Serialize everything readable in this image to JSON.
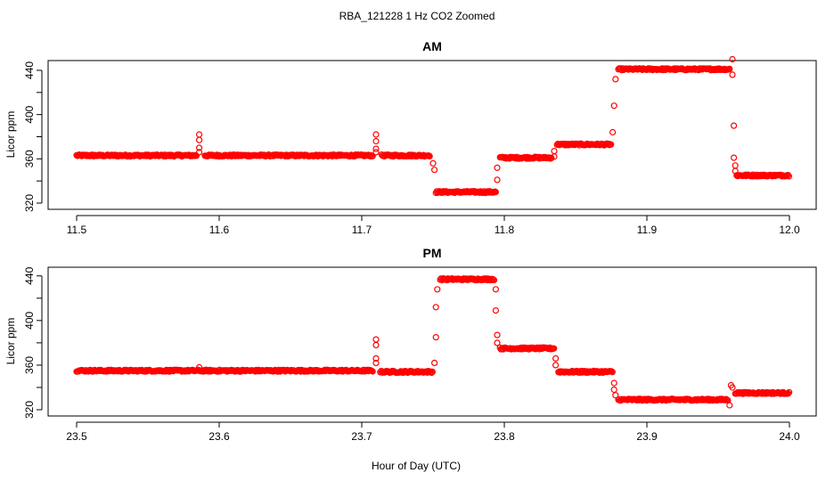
{
  "chart_data": {
    "title": "RBA_121228  1 Hz CO2 Zoomed",
    "xlabel": "Hour of Day (UTC)",
    "point_color": "#ff0000",
    "panels": [
      {
        "type": "scatter",
        "title": "AM",
        "ylabel": "Licor ppm",
        "xlim": [
          11.5,
          12.0
        ],
        "ylim": [
          320,
          444
        ],
        "xticks": [
          "11.5",
          "11.6",
          "11.7",
          "11.8",
          "11.9",
          "12.0"
        ],
        "yticks": [
          "320",
          "360",
          "400",
          "440"
        ],
        "segments": [
          {
            "x0": 11.5,
            "x1": 11.584,
            "y": 363
          },
          {
            "x0": 11.59,
            "x1": 11.708,
            "y": 363
          },
          {
            "x0": 11.714,
            "x1": 11.748,
            "y": 363
          },
          {
            "x0": 11.752,
            "x1": 11.794,
            "y": 330
          },
          {
            "x0": 11.797,
            "x1": 11.833,
            "y": 361
          },
          {
            "x0": 11.837,
            "x1": 11.875,
            "y": 373
          },
          {
            "x0": 11.88,
            "x1": 11.958,
            "y": 441
          },
          {
            "x0": 11.963,
            "x1": 12.0,
            "y": 345
          }
        ],
        "spikes": [
          {
            "x": 11.586,
            "y": 382
          },
          {
            "x": 11.586,
            "y": 377
          },
          {
            "x": 11.586,
            "y": 370
          },
          {
            "x": 11.586,
            "y": 366
          },
          {
            "x": 11.71,
            "y": 382
          },
          {
            "x": 11.71,
            "y": 376
          },
          {
            "x": 11.71,
            "y": 369
          },
          {
            "x": 11.71,
            "y": 366
          },
          {
            "x": 11.75,
            "y": 356
          },
          {
            "x": 11.751,
            "y": 350
          },
          {
            "x": 11.795,
            "y": 341
          },
          {
            "x": 11.795,
            "y": 352
          },
          {
            "x": 11.835,
            "y": 362
          },
          {
            "x": 11.835,
            "y": 367
          },
          {
            "x": 11.876,
            "y": 384
          },
          {
            "x": 11.877,
            "y": 408
          },
          {
            "x": 11.878,
            "y": 432
          },
          {
            "x": 11.96,
            "y": 450
          },
          {
            "x": 11.96,
            "y": 436
          },
          {
            "x": 11.961,
            "y": 390
          },
          {
            "x": 11.961,
            "y": 361
          },
          {
            "x": 11.962,
            "y": 354
          },
          {
            "x": 11.962,
            "y": 349
          }
        ]
      },
      {
        "type": "scatter",
        "title": "PM",
        "ylabel": "Licor ppm",
        "xlim": [
          23.5,
          24.0
        ],
        "ylim": [
          320,
          443
        ],
        "xticks": [
          "23.5",
          "23.6",
          "23.7",
          "23.8",
          "23.9",
          "24.0"
        ],
        "yticks": [
          "320",
          "360",
          "400",
          "440"
        ],
        "segments": [
          {
            "x0": 23.5,
            "x1": 23.708,
            "y": 355
          },
          {
            "x0": 23.713,
            "x1": 23.75,
            "y": 354
          },
          {
            "x0": 23.755,
            "x1": 23.793,
            "y": 437
          },
          {
            "x0": 23.797,
            "x1": 23.835,
            "y": 375
          },
          {
            "x0": 23.838,
            "x1": 23.876,
            "y": 354
          },
          {
            "x0": 23.88,
            "x1": 23.957,
            "y": 329
          },
          {
            "x0": 23.962,
            "x1": 24.0,
            "y": 335
          }
        ],
        "spikes": [
          {
            "x": 23.586,
            "y": 358
          },
          {
            "x": 23.71,
            "y": 383
          },
          {
            "x": 23.71,
            "y": 378
          },
          {
            "x": 23.71,
            "y": 366
          },
          {
            "x": 23.71,
            "y": 362
          },
          {
            "x": 23.751,
            "y": 362
          },
          {
            "x": 23.752,
            "y": 385
          },
          {
            "x": 23.752,
            "y": 412
          },
          {
            "x": 23.753,
            "y": 428
          },
          {
            "x": 23.794,
            "y": 428
          },
          {
            "x": 23.794,
            "y": 409
          },
          {
            "x": 23.795,
            "y": 387
          },
          {
            "x": 23.795,
            "y": 380
          },
          {
            "x": 23.836,
            "y": 366
          },
          {
            "x": 23.836,
            "y": 360
          },
          {
            "x": 23.877,
            "y": 344
          },
          {
            "x": 23.877,
            "y": 338
          },
          {
            "x": 23.878,
            "y": 333
          },
          {
            "x": 23.958,
            "y": 324
          },
          {
            "x": 23.959,
            "y": 342
          },
          {
            "x": 23.96,
            "y": 340
          }
        ]
      }
    ]
  }
}
